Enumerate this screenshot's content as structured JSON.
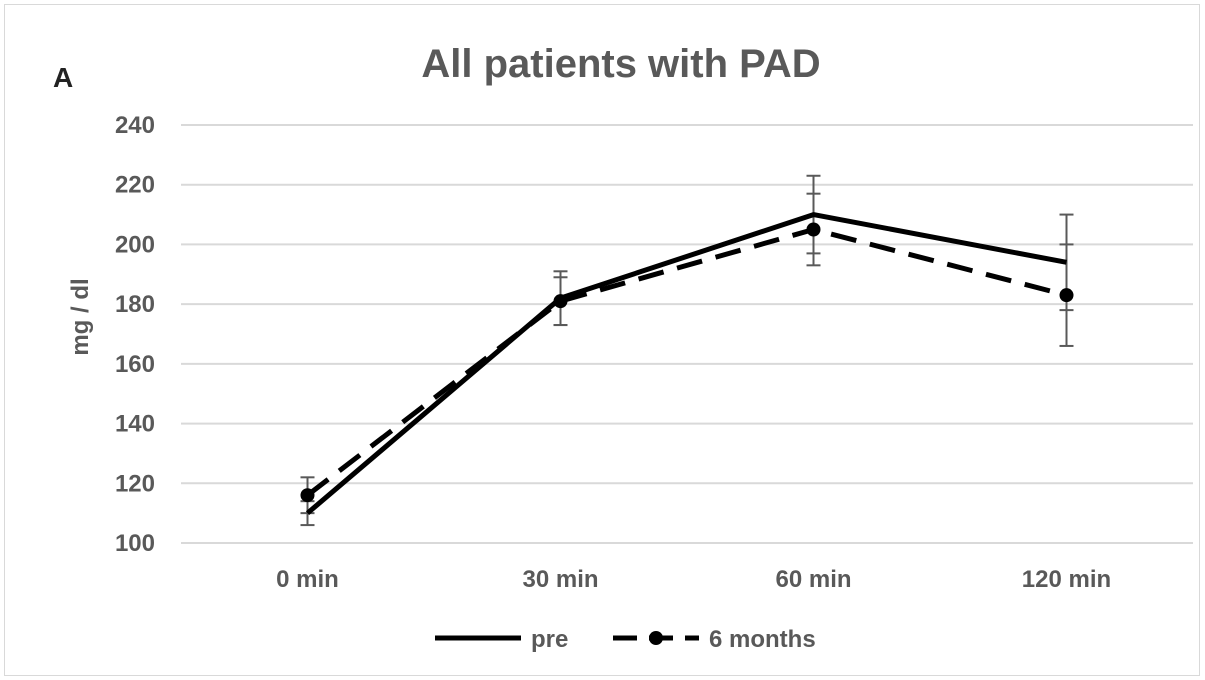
{
  "chart_data": {
    "type": "line",
    "panel_label": "A",
    "title": "All patients with PAD",
    "xlabel": "",
    "ylabel": "mg / dl",
    "categories": [
      "0 min",
      "30 min",
      "60 min",
      "120 min"
    ],
    "ylim": [
      100,
      240
    ],
    "yticks": [
      100,
      120,
      140,
      160,
      180,
      200,
      220,
      240
    ],
    "grid": true,
    "legend_position": "bottom",
    "series": [
      {
        "name": "pre",
        "values": [
          110,
          182,
          210,
          194
        ],
        "error": [
          4,
          9,
          13,
          16
        ],
        "style": "solid",
        "marker": "none",
        "color": "#000000"
      },
      {
        "name": "6 months",
        "values": [
          116,
          181,
          205,
          183
        ],
        "error": [
          6,
          8,
          12,
          17
        ],
        "style": "dashed",
        "marker": "circle",
        "color": "#000000"
      }
    ]
  },
  "colors": {
    "gridline": "#d9d9d9",
    "text": "#595959",
    "errorbar": "#595959"
  }
}
